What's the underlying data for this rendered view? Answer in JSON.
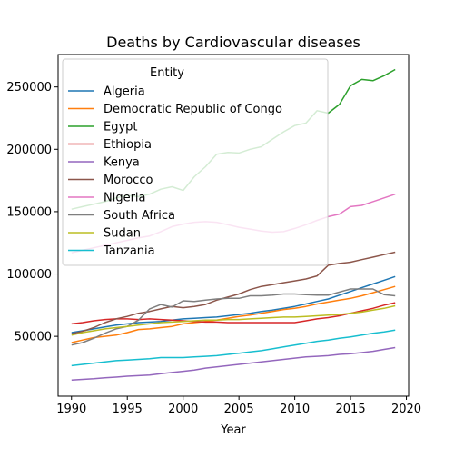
{
  "chart_data": {
    "type": "line",
    "title": "Deaths by Cardiovascular diseases",
    "xlabel": "Year",
    "ylabel": "",
    "xlim": [
      1988.8,
      2020.2
    ],
    "ylim": [
      2000,
      276000
    ],
    "x_ticks": [
      1990,
      1995,
      2000,
      2005,
      2010,
      2015,
      2020
    ],
    "y_ticks": [
      50000,
      100000,
      150000,
      200000,
      250000
    ],
    "y_tick_labels": [
      "50000",
      "100000",
      "150000",
      "200000",
      "250000"
    ],
    "legend": {
      "title": "Entity",
      "placement": "upper-left"
    },
    "x": [
      1990,
      1991,
      1992,
      1993,
      1994,
      1995,
      1996,
      1997,
      1998,
      1999,
      2000,
      2001,
      2002,
      2003,
      2004,
      2005,
      2006,
      2007,
      2008,
      2009,
      2010,
      2011,
      2012,
      2013,
      2014,
      2015,
      2016,
      2017,
      2018,
      2019
    ],
    "series": [
      {
        "name": "Algeria",
        "color": "#1f77b4",
        "values": [
          53000,
          54500,
          56000,
          57500,
          59000,
          60000,
          61000,
          61500,
          62000,
          63000,
          64000,
          64500,
          65000,
          65500,
          66500,
          67500,
          68500,
          70000,
          71000,
          72500,
          74000,
          76000,
          78000,
          80000,
          83000,
          86000,
          89000,
          92000,
          95000,
          98000
        ]
      },
      {
        "name": "Democratic Republic of Congo",
        "color": "#ff7f0e",
        "values": [
          45000,
          47000,
          49000,
          50000,
          51000,
          53000,
          55500,
          56000,
          57000,
          58000,
          60000,
          61000,
          62000,
          63000,
          64500,
          66000,
          67000,
          68500,
          70000,
          71500,
          72500,
          74000,
          76000,
          77500,
          79000,
          80500,
          82500,
          85000,
          87500,
          90000
        ]
      },
      {
        "name": "Egypt",
        "color": "#2ca02c",
        "values": [
          152000,
          154000,
          156000,
          158000,
          161000,
          163000,
          162000,
          164000,
          168000,
          170000,
          167000,
          178000,
          186000,
          196000,
          197500,
          197000,
          200000,
          202000,
          208000,
          214000,
          219000,
          221000,
          231000,
          229000,
          236000,
          251000,
          256000,
          255000,
          259000,
          264000
        ]
      },
      {
        "name": "Ethiopia",
        "color": "#d62728",
        "values": [
          60000,
          61000,
          62500,
          63500,
          64000,
          64000,
          63500,
          64000,
          63500,
          63000,
          62500,
          62000,
          61500,
          61500,
          61000,
          61000,
          61000,
          61000,
          61000,
          61000,
          61000,
          62500,
          64000,
          65000,
          66500,
          68500,
          70500,
          72500,
          75000,
          77000
        ]
      },
      {
        "name": "Kenya",
        "color": "#9467bd",
        "values": [
          15000,
          15500,
          16000,
          16700,
          17300,
          18000,
          18500,
          19000,
          20000,
          21000,
          22000,
          23000,
          24500,
          25500,
          26500,
          27500,
          28500,
          29500,
          30500,
          31500,
          32500,
          33500,
          34000,
          34500,
          35500,
          36000,
          37000,
          38000,
          39500,
          41000
        ]
      },
      {
        "name": "Morocco",
        "color": "#8c564b",
        "values": [
          52000,
          54000,
          57000,
          61000,
          64000,
          66000,
          68500,
          70000,
          72000,
          74000,
          73000,
          74000,
          75500,
          79000,
          81500,
          84000,
          87500,
          90000,
          91500,
          93000,
          94500,
          96000,
          98500,
          107000,
          108500,
          109500,
          111500,
          113500,
          115500,
          117500
        ]
      },
      {
        "name": "Nigeria",
        "color": "#e377c2",
        "values": [
          117000,
          119000,
          121000,
          123000,
          125000,
          127000,
          129000,
          130500,
          134000,
          138000,
          140000,
          141500,
          142000,
          141500,
          139500,
          137500,
          136000,
          134500,
          133500,
          134000,
          136500,
          139500,
          143000,
          146000,
          148000,
          154000,
          155000,
          158000,
          161000,
          164000
        ]
      },
      {
        "name": "South Africa",
        "color": "#7f7f7f",
        "values": [
          43000,
          45000,
          48500,
          52500,
          56000,
          58000,
          63000,
          72000,
          75500,
          73500,
          78500,
          78000,
          79000,
          80000,
          80500,
          80500,
          82500,
          82500,
          83000,
          84000,
          84000,
          83500,
          83000,
          83000,
          85500,
          88000,
          88000,
          88000,
          83500,
          82500
        ]
      },
      {
        "name": "Sudan",
        "color": "#bcbd22",
        "values": [
          51000,
          53000,
          54500,
          56000,
          57000,
          58000,
          59000,
          60000,
          61000,
          61500,
          62000,
          62500,
          63000,
          63000,
          63500,
          63500,
          64000,
          64500,
          65000,
          65500,
          65500,
          66000,
          66500,
          67000,
          67500,
          68500,
          69500,
          71000,
          72500,
          74500
        ]
      },
      {
        "name": "Tanzania",
        "color": "#17becf",
        "values": [
          26500,
          27500,
          28500,
          29500,
          30500,
          31000,
          31500,
          32000,
          33000,
          33000,
          33000,
          33500,
          34000,
          34500,
          35500,
          36500,
          37500,
          38500,
          40000,
          41500,
          43000,
          44500,
          46000,
          47000,
          48500,
          49500,
          51000,
          52500,
          53500,
          55000
        ]
      }
    ]
  }
}
